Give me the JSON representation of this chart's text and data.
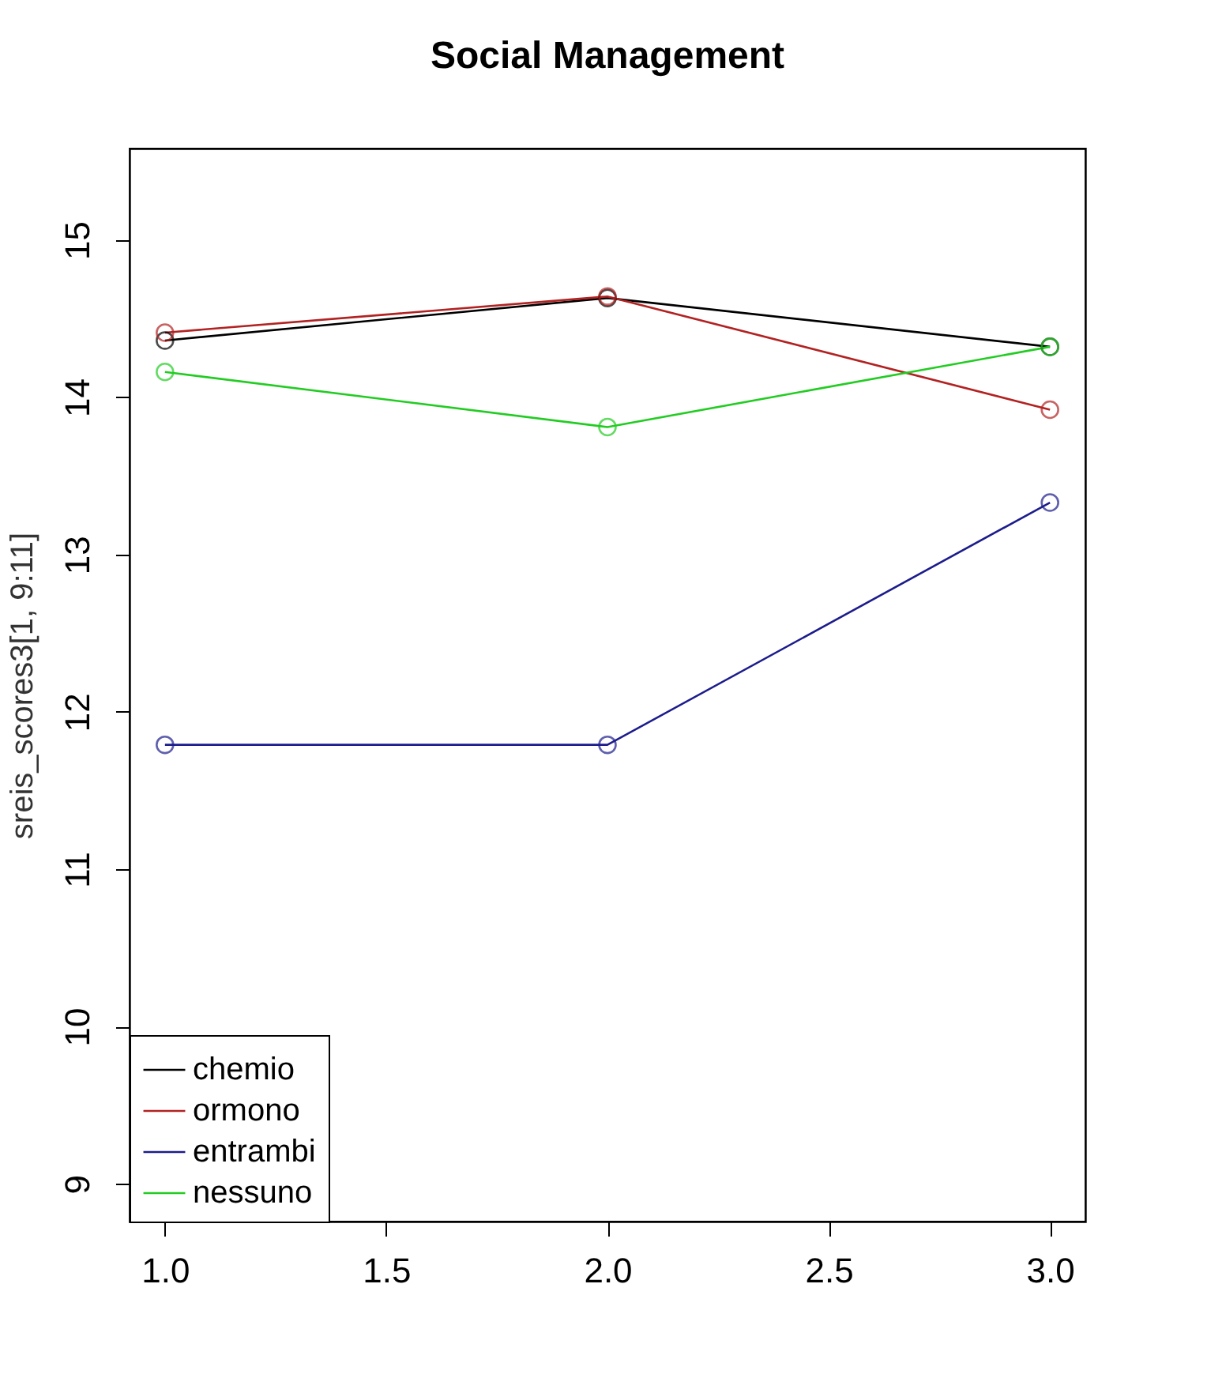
{
  "chart_data": {
    "type": "line",
    "title": "Social Management",
    "ylabel": "sreis_scores3[1, 9:11]",
    "x": [
      1,
      2,
      3
    ],
    "series": [
      {
        "name": "chemio",
        "color": "#000000",
        "values": [
          14.36,
          14.63,
          14.32
        ]
      },
      {
        "name": "ormono",
        "color": "#b22222",
        "values": [
          14.41,
          14.64,
          13.92
        ]
      },
      {
        "name": "entrambi",
        "color": "#1c1c8c",
        "values": [
          11.79,
          11.79,
          13.33
        ]
      },
      {
        "name": "nessuno",
        "color": "#22cc22",
        "values": [
          14.16,
          13.81,
          14.32
        ]
      }
    ],
    "xlim": [
      0.92,
      3.08
    ],
    "ylim": [
      8.76,
      15.58
    ],
    "xticks": [
      {
        "value": 1,
        "label": "1.0"
      },
      {
        "value": 1.5,
        "label": "1.5"
      },
      {
        "value": 2,
        "label": "2.0"
      },
      {
        "value": 2.5,
        "label": "2.5"
      },
      {
        "value": 3,
        "label": "3.0"
      }
    ],
    "yticks": [
      9,
      10,
      11,
      12,
      13,
      14,
      15
    ],
    "marker": "circle",
    "legend": "bottom left",
    "grid": false
  }
}
